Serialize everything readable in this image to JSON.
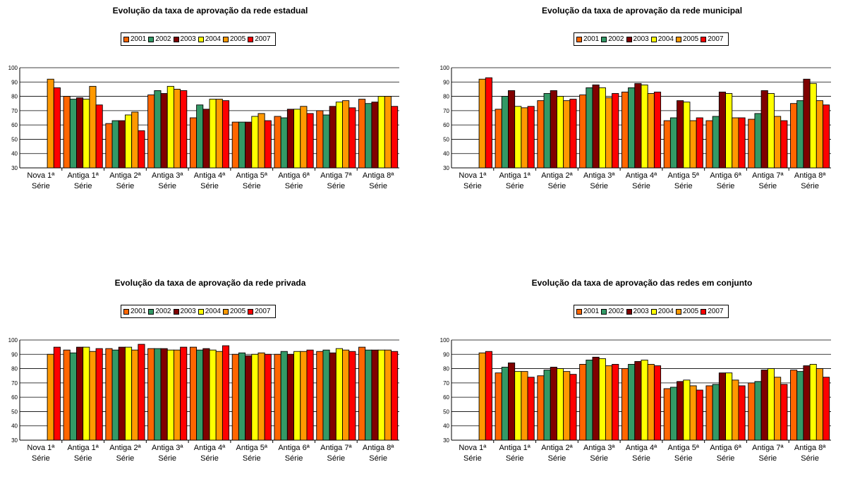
{
  "years": [
    "2001",
    "2002",
    "2003",
    "2004",
    "2005",
    "2007"
  ],
  "colors": [
    "#FF6600",
    "#339966",
    "#800000",
    "#FFFF00",
    "#FF9900",
    "#FF0000"
  ],
  "chart_data": [
    {
      "type": "bar",
      "title": "Evolução da taxa de aprovação da rede estadual",
      "categories": [
        "Nova 1ª Série",
        "Antiga 1ª Série",
        "Antiga 2ª Série",
        "Antiga 3ª Série",
        "Antiga 4ª Série",
        "Antiga 5ª Série",
        "Antiga 6ª Série",
        "Antiga 7ª Série",
        "Antiga 8ª Série"
      ],
      "ylim": [
        30,
        100
      ],
      "yticks": [
        30,
        40,
        50,
        60,
        70,
        80,
        90,
        100
      ],
      "series": [
        {
          "name": "2001",
          "values": [
            null,
            80,
            61,
            81,
            65,
            62,
            66,
            70,
            78
          ]
        },
        {
          "name": "2002",
          "values": [
            null,
            78,
            63,
            84,
            74,
            62,
            65,
            67,
            75
          ]
        },
        {
          "name": "2003",
          "values": [
            null,
            79,
            63,
            82,
            71,
            62,
            71,
            73,
            76
          ]
        },
        {
          "name": "2004",
          "values": [
            null,
            78,
            67,
            87,
            78,
            66,
            71,
            76,
            80
          ]
        },
        {
          "name": "2005",
          "values": [
            92,
            87,
            69,
            85,
            78,
            68,
            73,
            77,
            80
          ]
        },
        {
          "name": "2007",
          "values": [
            86,
            74,
            56,
            84,
            77,
            63,
            68,
            72,
            73
          ]
        }
      ]
    },
    {
      "type": "bar",
      "title": "Evolução da taxa de aprovação da rede municipal",
      "categories": [
        "Nova 1ª Série",
        "Antiga 1ª Série",
        "Antiga 2ª Série",
        "Antiga 3ª Série",
        "Antiga 4ª Série",
        "Antiga 5ª Série",
        "Antiga 6ª Série",
        "Antiga 7ª Série",
        "Antiga 8ª Série"
      ],
      "ylim": [
        30,
        100
      ],
      "yticks": [
        30,
        40,
        50,
        60,
        70,
        80,
        90,
        100
      ],
      "series": [
        {
          "name": "2001",
          "values": [
            null,
            71,
            77,
            81,
            83,
            63,
            63,
            64,
            75
          ]
        },
        {
          "name": "2002",
          "values": [
            null,
            80,
            82,
            86,
            86,
            65,
            66,
            68,
            77
          ]
        },
        {
          "name": "2003",
          "values": [
            null,
            84,
            84,
            88,
            89,
            77,
            83,
            84,
            92
          ]
        },
        {
          "name": "2004",
          "values": [
            null,
            73,
            80,
            86,
            88,
            76,
            82,
            82,
            89
          ]
        },
        {
          "name": "2005",
          "values": [
            92,
            72,
            77,
            79,
            82,
            63,
            65,
            66,
            77
          ]
        },
        {
          "name": "2007",
          "values": [
            93,
            73,
            78,
            82,
            83,
            65,
            65,
            63,
            74
          ]
        }
      ]
    },
    {
      "type": "bar",
      "title": "Evolução da taxa de aprovação da rede privada",
      "categories": [
        "Nova 1ª Série",
        "Antiga 1ª Série",
        "Antiga 2ª Série",
        "Antiga 3ª Série",
        "Antiga 4ª Série",
        "Antiga 5ª Série",
        "Antiga 6ª Série",
        "Antiga 7ª Série",
        "Antiga 8ª Série"
      ],
      "ylim": [
        30,
        100
      ],
      "yticks": [
        30,
        40,
        50,
        60,
        70,
        80,
        90,
        100
      ],
      "series": [
        {
          "name": "2001",
          "values": [
            null,
            93,
            94,
            94,
            95,
            90,
            90,
            92,
            95
          ]
        },
        {
          "name": "2002",
          "values": [
            null,
            91,
            93,
            94,
            93,
            91,
            92,
            93,
            93
          ]
        },
        {
          "name": "2003",
          "values": [
            null,
            95,
            95,
            94,
            94,
            89,
            90,
            91,
            93
          ]
        },
        {
          "name": "2004",
          "values": [
            null,
            95,
            95,
            93,
            93,
            90,
            92,
            94,
            93
          ]
        },
        {
          "name": "2005",
          "values": [
            90,
            92,
            93,
            93,
            92,
            91,
            92,
            93,
            93
          ]
        },
        {
          "name": "2007",
          "values": [
            95,
            94,
            97,
            95,
            96,
            90,
            93,
            92,
            92
          ]
        }
      ]
    },
    {
      "type": "bar",
      "title": "Evolução da taxa de aprovação das redes em conjunto",
      "categories": [
        "Nova 1ª Série",
        "Antiga 1ª Série",
        "Antiga 2ª Série",
        "Antiga 3ª Série",
        "Antiga 4ª Série",
        "Antiga 5ª Série",
        "Antiga 6ª Série",
        "Antiga 7ª Série",
        "Antiga 8ª Série"
      ],
      "ylim": [
        30,
        100
      ],
      "yticks": [
        30,
        40,
        50,
        60,
        70,
        80,
        90,
        100
      ],
      "series": [
        {
          "name": "2001",
          "values": [
            null,
            77,
            75,
            83,
            80,
            66,
            68,
            70,
            79
          ]
        },
        {
          "name": "2002",
          "values": [
            null,
            81,
            79,
            86,
            83,
            67,
            69,
            71,
            78
          ]
        },
        {
          "name": "2003",
          "values": [
            null,
            84,
            81,
            88,
            85,
            71,
            77,
            79,
            82
          ]
        },
        {
          "name": "2004",
          "values": [
            null,
            78,
            80,
            87,
            86,
            72,
            77,
            80,
            83
          ]
        },
        {
          "name": "2005",
          "values": [
            91,
            78,
            78,
            82,
            83,
            68,
            72,
            74,
            80
          ]
        },
        {
          "name": "2007",
          "values": [
            92,
            74,
            76,
            83,
            82,
            65,
            68,
            69,
            74
          ]
        }
      ]
    }
  ]
}
